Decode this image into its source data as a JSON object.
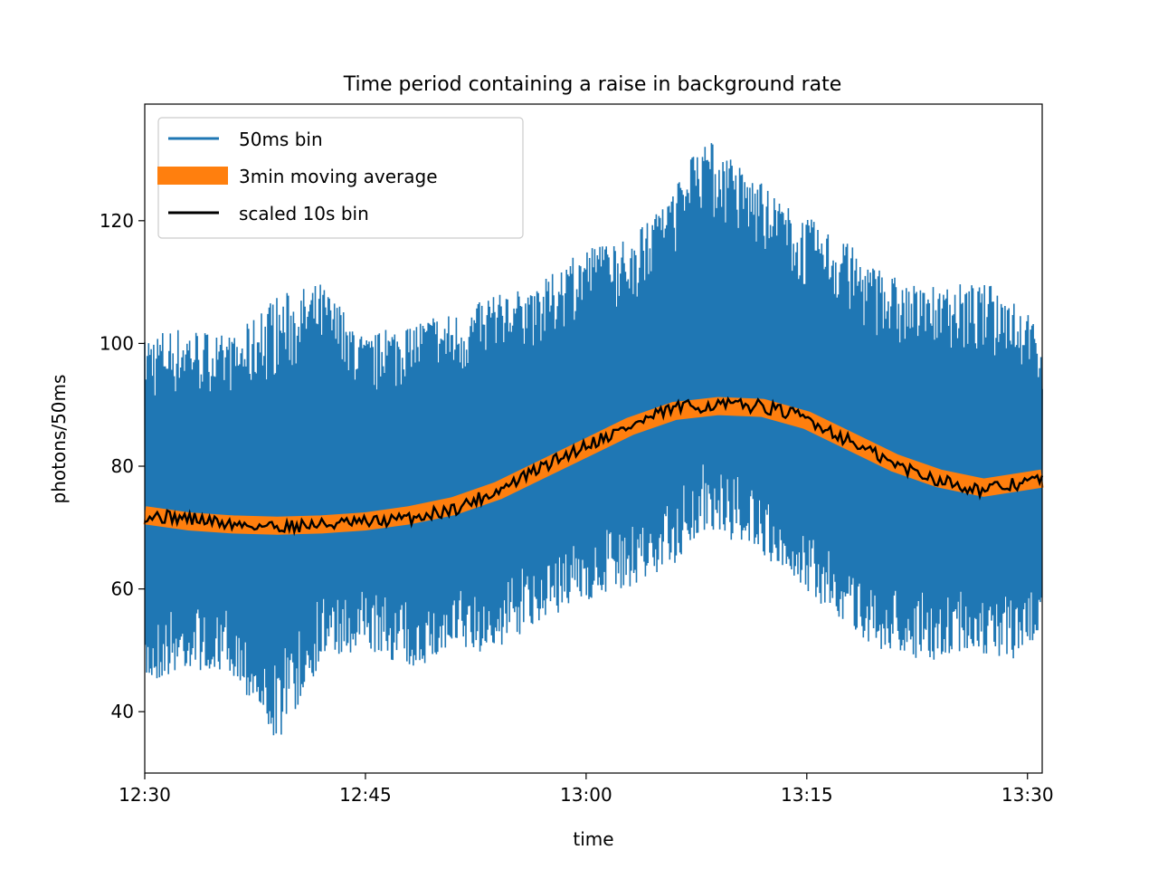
{
  "chart_data": {
    "type": "line",
    "title": "Time period containing a raise in background rate",
    "xlabel": "time",
    "ylabel": "photons/50ms",
    "xlim": [
      "12:30",
      "13:31"
    ],
    "ylim": [
      30,
      139
    ],
    "x_ticks": [
      "12:30",
      "12:45",
      "13:00",
      "13:15",
      "13:30"
    ],
    "y_ticks": [
      40,
      60,
      80,
      100,
      120
    ],
    "grid": false,
    "legend_position": "top-left",
    "series": [
      {
        "name": "50ms bin",
        "color": "#1f77b4",
        "style": "noisy band of 50ms samples",
        "x": [
          "12:30",
          "12:33",
          "12:36",
          "12:39",
          "12:42",
          "12:45",
          "12:48",
          "12:51",
          "12:54",
          "12:57",
          "13:00",
          "13:03",
          "13:06",
          "13:08",
          "13:11",
          "13:14",
          "13:17",
          "13:20",
          "13:23",
          "13:26",
          "13:29",
          "13:31"
        ],
        "upper": [
          102,
          103,
          101,
          108,
          110,
          101,
          104,
          105,
          108,
          110,
          116,
          117,
          125,
          134,
          128,
          122,
          118,
          112,
          109,
          110,
          109,
          101
        ],
        "lower": [
          44,
          47,
          46,
          35,
          48,
          50,
          47,
          49,
          50,
          55,
          58,
          60,
          64,
          69,
          67,
          62,
          55,
          50,
          48,
          50,
          48,
          53
        ]
      },
      {
        "name": "3min moving average",
        "color": "#ff7f0e",
        "style": "thick band",
        "x": [
          "12:30",
          "12:33",
          "12:36",
          "12:39",
          "12:42",
          "12:45",
          "12:48",
          "12:51",
          "12:54",
          "12:57",
          "13:00",
          "13:03",
          "13:06",
          "13:09",
          "13:12",
          "13:15",
          "13:18",
          "13:21",
          "13:24",
          "13:27",
          "13:31"
        ],
        "values": [
          72,
          71,
          70.5,
          70.3,
          70.5,
          71,
          72,
          73.5,
          76,
          79.5,
          83,
          86.5,
          89,
          89.8,
          89.5,
          87.5,
          84,
          80.5,
          78,
          76.5,
          78
        ]
      },
      {
        "name": "scaled 10s bin",
        "color": "#000000",
        "style": "thin line",
        "x": [
          "12:30",
          "12:33",
          "12:36",
          "12:39",
          "12:42",
          "12:45",
          "12:48",
          "12:51",
          "12:54",
          "12:57",
          "13:00",
          "13:03",
          "13:06",
          "13:09",
          "13:12",
          "13:15",
          "13:18",
          "13:21",
          "13:24",
          "13:27",
          "13:31"
        ],
        "values": [
          72,
          71.5,
          70.5,
          70.2,
          70.5,
          70.8,
          71.5,
          73,
          76,
          79.8,
          83.5,
          86.5,
          89.5,
          90,
          89.8,
          87.8,
          84,
          80.2,
          77.8,
          76,
          78
        ]
      }
    ]
  }
}
